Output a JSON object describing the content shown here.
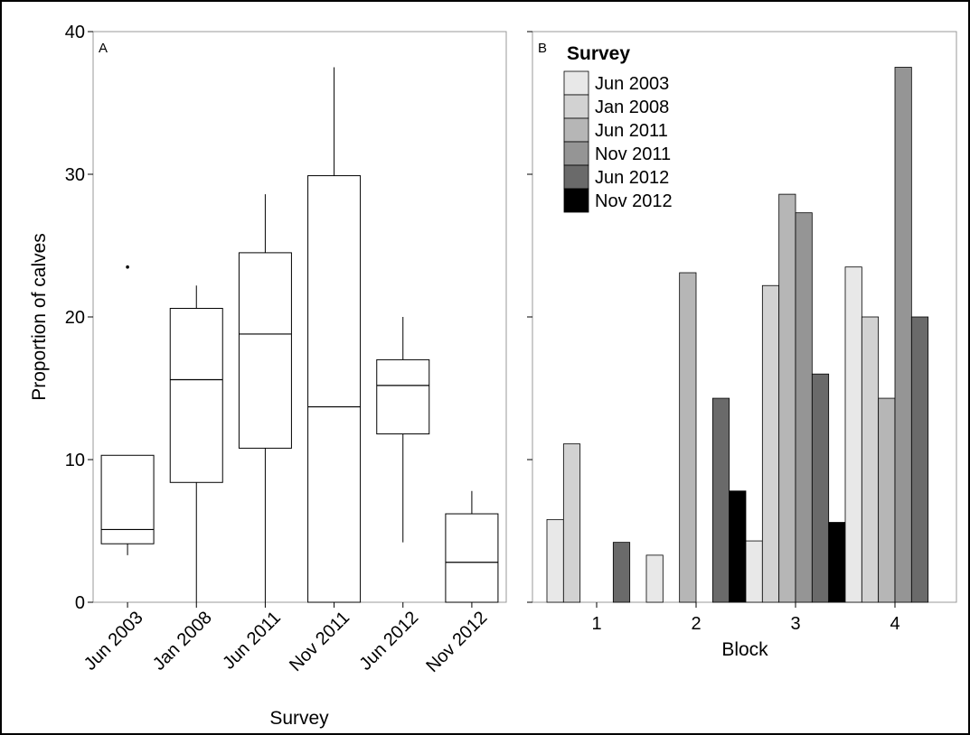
{
  "figure": {
    "y_axis_label": "Proportion of calves",
    "y_ticks": [
      "0",
      "10",
      "20",
      "30",
      "40"
    ]
  },
  "chart_data": [
    {
      "panel_label": "A",
      "type": "box",
      "xlabel": "Survey",
      "ylabel": "Proportion of calves",
      "ylim": [
        0,
        40
      ],
      "categories": [
        "Jun 2003",
        "Jan 2008",
        "Jun 2011",
        "Nov 2011",
        "Jun 2012",
        "Nov 2012"
      ],
      "boxes": [
        {
          "min": 3.3,
          "q1": 4.1,
          "median": 5.1,
          "q3": 10.3,
          "max": 10.3,
          "outliers": [
            23.5
          ]
        },
        {
          "min": 0,
          "q1": 8.4,
          "median": 15.6,
          "q3": 20.6,
          "max": 22.2,
          "outliers": []
        },
        {
          "min": 0,
          "q1": 10.8,
          "median": 18.8,
          "q3": 24.5,
          "max": 28.6,
          "outliers": []
        },
        {
          "min": 0,
          "q1": 0,
          "median": 13.7,
          "q3": 29.9,
          "max": 37.5,
          "outliers": []
        },
        {
          "min": 4.2,
          "q1": 11.8,
          "median": 15.2,
          "q3": 17.0,
          "max": 20.0,
          "outliers": []
        },
        {
          "min": 0,
          "q1": 0,
          "median": 2.8,
          "q3": 6.2,
          "max": 7.8,
          "outliers": []
        }
      ]
    },
    {
      "panel_label": "B",
      "type": "bar",
      "xlabel": "Block",
      "ylim": [
        0,
        40
      ],
      "categories": [
        "1",
        "2",
        "3",
        "4"
      ],
      "legend_title": "Survey",
      "legend_position": "top-left",
      "series": [
        {
          "name": "Jun 2003",
          "color": "#e8e8e8",
          "values": [
            5.8,
            3.3,
            4.3,
            23.5
          ]
        },
        {
          "name": "Jan 2008",
          "color": "#d2d2d2",
          "values": [
            11.1,
            0,
            22.2,
            20.0
          ]
        },
        {
          "name": "Jun 2011",
          "color": "#b6b6b6",
          "values": [
            0,
            23.1,
            28.6,
            14.3
          ]
        },
        {
          "name": "Nov 2011",
          "color": "#959595",
          "values": [
            0,
            0,
            27.3,
            37.5
          ]
        },
        {
          "name": "Jun 2012",
          "color": "#6a6a6a",
          "values": [
            4.2,
            14.3,
            16.0,
            20.0
          ]
        },
        {
          "name": "Nov 2012",
          "color": "#000000",
          "values": [
            0,
            7.8,
            5.6,
            0
          ]
        }
      ]
    }
  ]
}
